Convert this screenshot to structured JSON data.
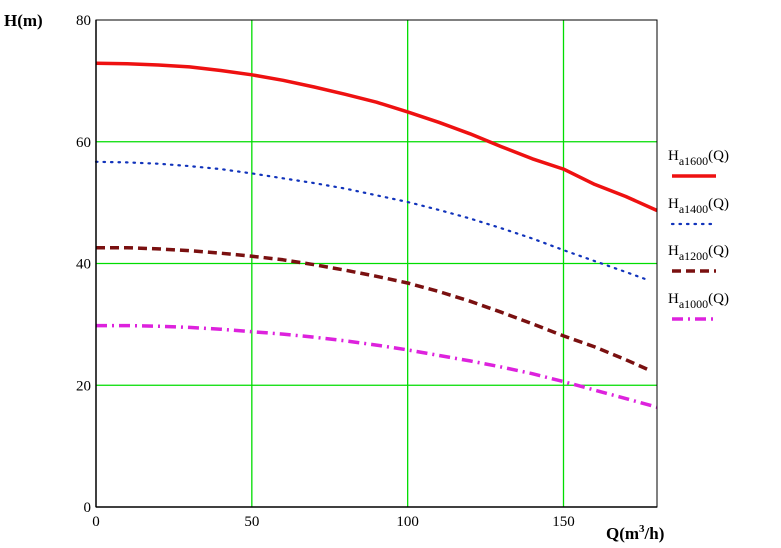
{
  "colors": {
    "background": "#ffffff",
    "grid": "#00dd00",
    "axis": "#000000"
  },
  "chart_data": {
    "type": "line",
    "grid": true,
    "xlabel": {
      "base": "Q(m",
      "sup": "3",
      "tail": "/h)"
    },
    "ylabel": "H(m)",
    "xlim": [
      0,
      180
    ],
    "ylim": [
      0,
      80
    ],
    "x_ticks": [
      0,
      50,
      100,
      150
    ],
    "y_ticks": [
      0,
      20,
      40,
      60,
      80
    ],
    "legend_position": "right",
    "series": [
      {
        "name": "Ha1600(Q)",
        "legend_main": "H",
        "legend_sub": "a1600",
        "legend_tail": "(Q)",
        "color": "#ee1111",
        "style": "solid",
        "x": [
          0,
          10,
          20,
          30,
          40,
          50,
          60,
          70,
          80,
          90,
          100,
          110,
          120,
          130,
          140,
          150,
          160,
          170,
          180
        ],
        "y": [
          72.9,
          72.8,
          72.6,
          72.3,
          71.7,
          71.0,
          70.1,
          69.0,
          67.8,
          66.5,
          64.9,
          63.2,
          61.3,
          59.2,
          57.2,
          55.5,
          53.0,
          51.0,
          48.7
        ]
      },
      {
        "name": "Ha1400(Q)",
        "legend_main": "H",
        "legend_sub": "a1400",
        "legend_tail": "(Q)",
        "color": "#1133bb",
        "style": "dotted",
        "x": [
          0,
          10,
          20,
          30,
          40,
          50,
          60,
          70,
          80,
          90,
          100,
          110,
          120,
          130,
          140,
          150,
          160,
          170,
          177
        ],
        "y": [
          56.7,
          56.6,
          56.4,
          56.0,
          55.5,
          54.8,
          54.0,
          53.2,
          52.3,
          51.2,
          50.1,
          48.8,
          47.4,
          45.8,
          44.1,
          42.2,
          40.4,
          38.6,
          37.3
        ]
      },
      {
        "name": "Ha1200(Q)",
        "legend_main": "H",
        "legend_sub": "a1200",
        "legend_tail": "(Q)",
        "color": "#7a1010",
        "style": "dashed",
        "x": [
          0,
          10,
          20,
          30,
          40,
          50,
          60,
          70,
          80,
          90,
          100,
          110,
          120,
          130,
          140,
          150,
          160,
          170,
          177
        ],
        "y": [
          42.6,
          42.6,
          42.4,
          42.1,
          41.7,
          41.2,
          40.6,
          39.8,
          38.9,
          37.9,
          36.8,
          35.4,
          33.8,
          32.0,
          30.1,
          28.1,
          26.3,
          24.2,
          22.6
        ]
      },
      {
        "name": "Ha1000(Q)",
        "legend_main": "H",
        "legend_sub": "a1000",
        "legend_tail": "(Q)",
        "color": "#dd22dd",
        "style": "dashdot",
        "x": [
          0,
          10,
          20,
          30,
          40,
          50,
          60,
          70,
          80,
          90,
          100,
          110,
          120,
          130,
          140,
          150,
          160,
          170,
          180
        ],
        "y": [
          29.8,
          29.8,
          29.7,
          29.5,
          29.2,
          28.8,
          28.4,
          27.9,
          27.3,
          26.6,
          25.8,
          24.9,
          24.0,
          23.0,
          21.9,
          20.6,
          19.2,
          17.8,
          16.4
        ]
      }
    ]
  }
}
